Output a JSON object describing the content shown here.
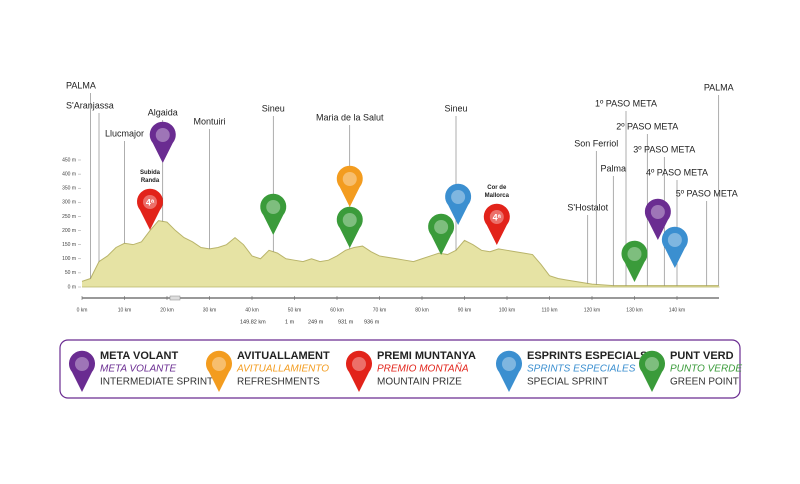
{
  "chart_data": {
    "type": "area",
    "color": "#e6e3a4",
    "line_color": "#b9b46a",
    "xlim": [
      0,
      150
    ],
    "ylim": [
      0,
      450
    ],
    "xticks": [
      {
        "value": 0,
        "label": "0 km"
      },
      {
        "value": 10,
        "label": "10 km"
      },
      {
        "value": 20,
        "label": "20 km"
      },
      {
        "value": 30,
        "label": "30 km"
      },
      {
        "value": 40,
        "label": "40 km"
      },
      {
        "value": 50,
        "label": "50 km"
      },
      {
        "value": 60,
        "label": "60 km"
      },
      {
        "value": 70,
        "label": "70 km"
      },
      {
        "value": 80,
        "label": "80 km"
      },
      {
        "value": 90,
        "label": "90 km"
      },
      {
        "value": 100,
        "label": "100 km"
      },
      {
        "value": 110,
        "label": "110 km"
      },
      {
        "value": 120,
        "label": "120 km"
      },
      {
        "value": 130,
        "label": "130 km"
      },
      {
        "value": 140,
        "label": "140 km"
      }
    ],
    "yticks": [
      {
        "value": 0,
        "label": "0 m"
      },
      {
        "value": 50,
        "label": "50 m"
      },
      {
        "value": 100,
        "label": "100 m"
      },
      {
        "value": 150,
        "label": "150 m"
      },
      {
        "value": 200,
        "label": "200 m"
      },
      {
        "value": 250,
        "label": "250 m"
      },
      {
        "value": 300,
        "label": "300 m"
      },
      {
        "value": 350,
        "label": "350 m"
      },
      {
        "value": 400,
        "label": "400 m"
      },
      {
        "value": 450,
        "label": "450 m"
      }
    ],
    "x": [
      0,
      2,
      4,
      6,
      8,
      10,
      12,
      14,
      16,
      18,
      20,
      22,
      24,
      26,
      28,
      30,
      32,
      34,
      36,
      38,
      40,
      42,
      44,
      46,
      48,
      50,
      52,
      54,
      56,
      58,
      60,
      62,
      64,
      66,
      68,
      70,
      72,
      74,
      76,
      78,
      80,
      82,
      84,
      86,
      88,
      90,
      92,
      94,
      96,
      98,
      100,
      102,
      104,
      106,
      108,
      110,
      112,
      114,
      116,
      118,
      120,
      125,
      130,
      135,
      140,
      145,
      149.82
    ],
    "values": [
      20,
      30,
      90,
      110,
      140,
      155,
      150,
      160,
      200,
      235,
      230,
      200,
      175,
      160,
      140,
      135,
      140,
      150,
      175,
      150,
      110,
      100,
      130,
      120,
      100,
      95,
      90,
      100,
      90,
      95,
      110,
      130,
      140,
      145,
      125,
      110,
      105,
      100,
      95,
      90,
      100,
      110,
      120,
      115,
      130,
      165,
      150,
      130,
      125,
      135,
      130,
      125,
      120,
      115,
      80,
      40,
      30,
      25,
      20,
      15,
      10,
      5,
      5,
      5,
      5,
      5,
      5
    ],
    "waypoints": [
      {
        "label": "PALMA",
        "km": 2
      },
      {
        "label": "S'Aranjassa",
        "km": 4
      },
      {
        "label": "Llucmajor",
        "km": 10
      },
      {
        "label": "Algaida",
        "km": 19
      },
      {
        "label": "Montuiri",
        "km": 30
      },
      {
        "label": "Sineu",
        "km": 45
      },
      {
        "label": "Maria de la Salut",
        "km": 63
      },
      {
        "label": "Sineu",
        "km": 88
      },
      {
        "label": "S'Hostalot",
        "km": 119
      },
      {
        "label": "Son Ferriol",
        "km": 121
      },
      {
        "label": "Palma",
        "km": 125
      },
      {
        "label": "1º PASO META",
        "km": 128
      },
      {
        "label": "2º PASO META",
        "km": 133
      },
      {
        "label": "3º PASO META",
        "km": 137
      },
      {
        "label": "4º PASO META",
        "km": 140
      },
      {
        "label": "5º PASO META",
        "km": 147
      },
      {
        "label": "PALMA",
        "km": 149.82
      }
    ],
    "stats": [
      "149.82 km",
      "1 m",
      "249 m",
      "931 m",
      "936 m"
    ],
    "legend": [
      {
        "lines": [
          "META VOLANT",
          "META VOLANTE",
          "INTERMEDIATE SPRINT"
        ],
        "color": "#6a2c91",
        "pins": [
          {
            "km": 19
          },
          {
            "km": 135.5
          }
        ]
      },
      {
        "lines": [
          "AVITUALLAMENT",
          "AVITUALLAMIENTO",
          "REFRESHMENTS"
        ],
        "color": "#f39c1f",
        "pins": [
          {
            "km": 63
          }
        ]
      },
      {
        "lines": [
          "PREMI MUNTANYA",
          "PREMIO MONTAÑA",
          "MOUNTAIN PRIZE"
        ],
        "color": "#e2231a",
        "pins": [
          {
            "km": 16,
            "label": "4ª",
            "name": "Subida Randa"
          },
          {
            "km": 97.6,
            "label": "4ª",
            "name": "Cor de Mallorca"
          }
        ]
      },
      {
        "lines": [
          "ESPRINTS ESPECIALS",
          "SPRINTS ESPECIALES",
          "SPECIAL SPRINT"
        ],
        "color": "#3b8fd0",
        "pins": [
          {
            "km": 88.5
          },
          {
            "km": 139.5
          }
        ]
      },
      {
        "lines": [
          "PUNT VERD",
          "PUNTO VERDE",
          "GREEN POINT"
        ],
        "color": "#3a9b3a",
        "pins": [
          {
            "km": 45
          },
          {
            "km": 63
          },
          {
            "km": 84.5
          },
          {
            "km": 130
          }
        ]
      }
    ]
  }
}
